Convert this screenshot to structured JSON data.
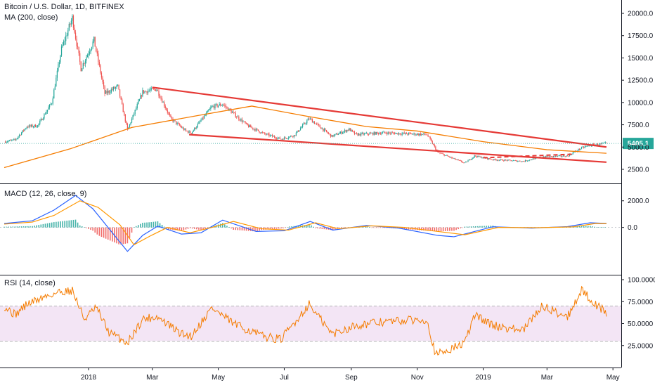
{
  "header": {
    "symbol_title": "Bitcoin / U.S. Dollar, 1D, BITFINEX",
    "ma_label": "MA (200, close)",
    "macd_label": "MACD (12, 26, close, 9)",
    "rsi_label": "RSI (14, close)"
  },
  "last_price": {
    "value": "5405.1",
    "color": "#26a69a"
  },
  "colors": {
    "up": "#26a69a",
    "down": "#ef5350",
    "ma": "#f57c00",
    "trend": "#e53935",
    "macd": "#2962ff",
    "signal": "#ff9800",
    "rsi": "#f57c00",
    "rsi_band": "#f3e5f5",
    "axis": "#131722",
    "grid": "#e0e3eb"
  },
  "chart_data": [
    {
      "type": "candlestick",
      "name": "price",
      "ylim": [
        1000,
        21500
      ],
      "y_ticks": [
        "2500.0",
        "5000.0",
        "7500.0",
        "10000.0",
        "12500.0",
        "15000.0",
        "17500.0",
        "20000.0"
      ],
      "y_tick_values": [
        2500,
        5000,
        7500,
        10000,
        12500,
        15000,
        17500,
        20000
      ],
      "date_range": [
        "2017-10-15",
        "2019-04-27"
      ],
      "x_labels": [
        "2018",
        "Mar",
        "May",
        "Jul",
        "Sep",
        "Nov",
        "2019",
        "Mar",
        "May"
      ],
      "x_label_dates": [
        "2018-01-01",
        "2018-03-01",
        "2018-05-01",
        "2018-07-01",
        "2018-09-01",
        "2018-11-01",
        "2019-01-01",
        "2019-03-01",
        "2019-05-01"
      ],
      "close_path": [
        [
          "2017-10-15",
          5600
        ],
        [
          "2017-10-25",
          5800
        ],
        [
          "2017-11-05",
          7300
        ],
        [
          "2017-11-15",
          7400
        ],
        [
          "2017-11-28",
          10000
        ],
        [
          "2017-12-07",
          16000
        ],
        [
          "2017-12-17",
          19500
        ],
        [
          "2017-12-25",
          13800
        ],
        [
          "2018-01-06",
          17000
        ],
        [
          "2018-01-16",
          11000
        ],
        [
          "2018-01-28",
          11800
        ],
        [
          "2018-02-06",
          6900
        ],
        [
          "2018-02-20",
          11200
        ],
        [
          "2018-03-05",
          11500
        ],
        [
          "2018-03-18",
          8200
        ],
        [
          "2018-04-01",
          6800
        ],
        [
          "2018-04-06",
          6600
        ],
        [
          "2018-04-25",
          9500
        ],
        [
          "2018-05-05",
          9800
        ],
        [
          "2018-05-28",
          7400
        ],
        [
          "2018-06-12",
          6500
        ],
        [
          "2018-06-28",
          5900
        ],
        [
          "2018-07-10",
          6300
        ],
        [
          "2018-07-24",
          8200
        ],
        [
          "2018-08-14",
          6200
        ],
        [
          "2018-08-30",
          7000
        ],
        [
          "2018-09-05",
          6400
        ],
        [
          "2018-10-01",
          6600
        ],
        [
          "2018-11-10",
          6400
        ],
        [
          "2018-11-20",
          4400
        ],
        [
          "2018-12-15",
          3200
        ],
        [
          "2018-12-24",
          4000
        ],
        [
          "2019-01-10",
          3600
        ],
        [
          "2019-02-07",
          3400
        ],
        [
          "2019-02-24",
          3900
        ],
        [
          "2019-03-20",
          4000
        ],
        [
          "2019-04-02",
          4900
        ],
        [
          "2019-04-10",
          5200
        ],
        [
          "2019-04-25",
          5405.1
        ]
      ],
      "ma200": [
        [
          "2017-10-15",
          2700
        ],
        [
          "2017-12-15",
          4800
        ],
        [
          "2018-02-10",
          7200
        ],
        [
          "2018-04-15",
          8600
        ],
        [
          "2018-06-01",
          9600
        ],
        [
          "2018-07-20",
          8500
        ],
        [
          "2018-09-15",
          7300
        ],
        [
          "2018-11-01",
          6800
        ],
        [
          "2019-01-01",
          5600
        ],
        [
          "2019-03-01",
          4700
        ],
        [
          "2019-04-25",
          4300
        ]
      ],
      "trendlines": [
        {
          "style": "solid",
          "points": [
            [
              "2018-03-01",
              11700
            ],
            [
              "2019-04-25",
              5000
            ]
          ]
        },
        {
          "style": "solid",
          "points": [
            [
              "2018-04-04",
              6400
            ],
            [
              "2019-04-25",
              3300
            ]
          ]
        },
        {
          "style": "dashed",
          "points": [
            [
              "2019-01-01",
              3800
            ],
            [
              "2019-03-25",
              4200
            ]
          ]
        }
      ]
    },
    {
      "type": "line",
      "name": "macd",
      "ylim": [
        -3500,
        3200
      ],
      "y_ticks": [
        "0.0",
        "2000.0"
      ],
      "y_tick_values": [
        0,
        2000
      ],
      "series": [
        {
          "values": [
            [
              "2017-10-15",
              300
            ],
            [
              "2017-11-10",
              500
            ],
            [
              "2017-11-30",
              1300
            ],
            [
              "2017-12-20",
              2400
            ],
            [
              "2018-01-05",
              1400
            ],
            [
              "2018-01-25",
              -600
            ],
            [
              "2018-02-06",
              -1800
            ],
            [
              "2018-02-20",
              -600
            ],
            [
              "2018-03-06",
              100
            ],
            [
              "2018-03-28",
              -500
            ],
            [
              "2018-04-15",
              -400
            ],
            [
              "2018-05-05",
              550
            ],
            [
              "2018-06-05",
              -300
            ],
            [
              "2018-07-01",
              -250
            ],
            [
              "2018-07-25",
              450
            ],
            [
              "2018-08-15",
              -200
            ],
            [
              "2018-09-15",
              150
            ],
            [
              "2018-10-15",
              -50
            ],
            [
              "2018-11-20",
              -600
            ],
            [
              "2018-12-05",
              -700
            ],
            [
              "2019-01-10",
              50
            ],
            [
              "2019-02-15",
              -50
            ],
            [
              "2019-03-20",
              60
            ],
            [
              "2019-04-10",
              350
            ],
            [
              "2019-04-25",
              300
            ]
          ]
        },
        {
          "values": [
            [
              "2017-10-15",
              250
            ],
            [
              "2017-11-10",
              400
            ],
            [
              "2017-11-30",
              900
            ],
            [
              "2017-12-24",
              2000
            ],
            [
              "2018-01-10",
              1500
            ],
            [
              "2018-01-30",
              200
            ],
            [
              "2018-02-12",
              -1300
            ],
            [
              "2018-02-28",
              -600
            ],
            [
              "2018-03-15",
              0
            ],
            [
              "2018-04-05",
              -400
            ],
            [
              "2018-04-25",
              0
            ],
            [
              "2018-05-15",
              450
            ],
            [
              "2018-06-10",
              -100
            ],
            [
              "2018-07-05",
              -200
            ],
            [
              "2018-07-30",
              350
            ],
            [
              "2018-08-20",
              -100
            ],
            [
              "2018-09-20",
              120
            ],
            [
              "2018-10-20",
              0
            ],
            [
              "2018-11-25",
              -350
            ],
            [
              "2018-12-15",
              -550
            ],
            [
              "2019-01-15",
              0
            ],
            [
              "2019-02-20",
              -20
            ],
            [
              "2019-03-25",
              40
            ],
            [
              "2019-04-15",
              300
            ],
            [
              "2019-04-25",
              280
            ]
          ]
        }
      ]
    },
    {
      "type": "line",
      "name": "rsi",
      "ylim": [
        0,
        104
      ],
      "y_ticks": [
        "25.0000",
        "50.0000",
        "75.0000",
        "100.0000"
      ],
      "y_tick_values": [
        25,
        50,
        75,
        100
      ],
      "band": [
        30,
        70
      ],
      "series": [
        {
          "values": [
            [
              "2017-10-15",
              70
            ],
            [
              "2017-10-25",
              60
            ],
            [
              "2017-11-05",
              72
            ],
            [
              "2017-11-20",
              80
            ],
            [
              "2017-12-05",
              86
            ],
            [
              "2017-12-17",
              88
            ],
            [
              "2017-12-28",
              55
            ],
            [
              "2018-01-08",
              68
            ],
            [
              "2018-01-20",
              40
            ],
            [
              "2018-02-06",
              28
            ],
            [
              "2018-02-20",
              55
            ],
            [
              "2018-03-05",
              58
            ],
            [
              "2018-03-28",
              38
            ],
            [
              "2018-04-06",
              36
            ],
            [
              "2018-04-25",
              68
            ],
            [
              "2018-05-15",
              50
            ],
            [
              "2018-06-10",
              36
            ],
            [
              "2018-06-28",
              32
            ],
            [
              "2018-07-24",
              72
            ],
            [
              "2018-08-14",
              38
            ],
            [
              "2018-09-05",
              48
            ],
            [
              "2018-10-01",
              52
            ],
            [
              "2018-11-10",
              55
            ],
            [
              "2018-11-18",
              14
            ],
            [
              "2018-12-15",
              28
            ],
            [
              "2018-12-24",
              60
            ],
            [
              "2019-01-10",
              48
            ],
            [
              "2019-02-07",
              42
            ],
            [
              "2019-02-24",
              70
            ],
            [
              "2019-03-20",
              58
            ],
            [
              "2019-04-02",
              88
            ],
            [
              "2019-04-15",
              72
            ],
            [
              "2019-04-25",
              62
            ]
          ]
        }
      ]
    }
  ]
}
